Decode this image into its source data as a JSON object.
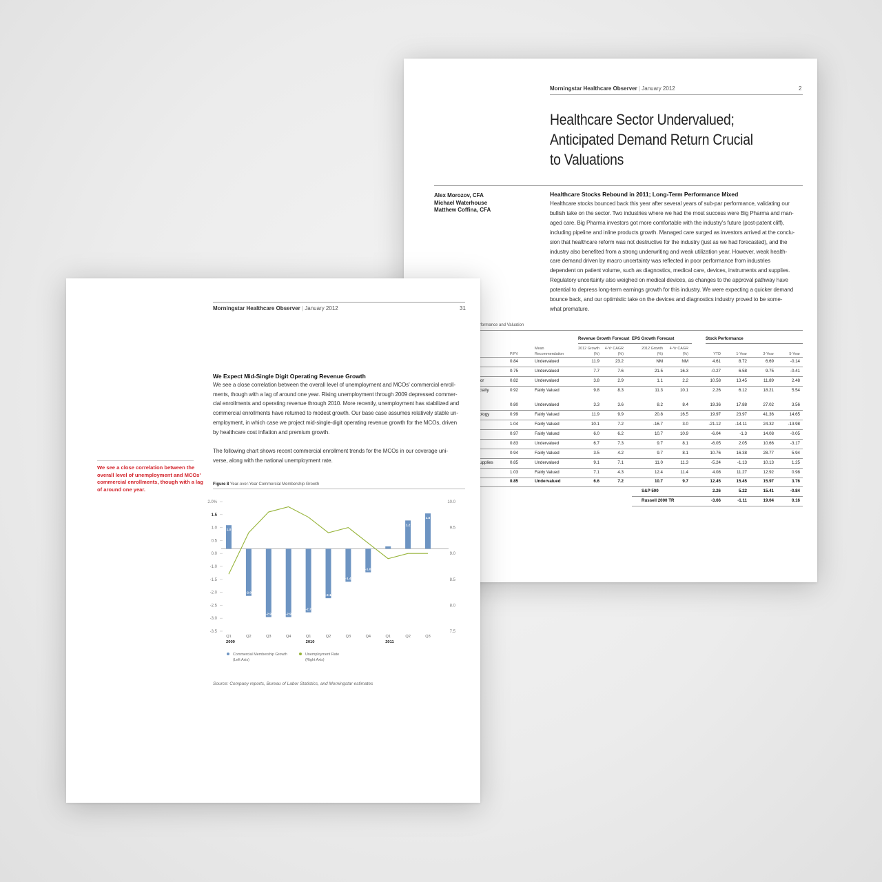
{
  "page2": {
    "header": {
      "publication": "Morningstar Healthcare Observer",
      "date": "January 2012",
      "page_number": "2"
    },
    "title_lines": [
      "Healthcare Sector Undervalued;",
      "Anticipated Demand Return Crucial",
      "to Valuations"
    ],
    "authors": [
      "Alex Morozov, CFA",
      "Michael Waterhouse",
      "Matthew Coffina, CFA"
    ],
    "section_heading": "Healthcare Stocks Rebound in 2011; Long-Term Performance Mixed",
    "body_lines": [
      "Healthcare stocks bounced back this year after several years of sub-par performance, validating our",
      "bullish take on the sector. Two industries where we had the most success were Big Pharma and man-",
      "aged care. Big Pharma investors got more comfortable with the industry's future (post-patent cliff),",
      "including pipeline and inline products growth. Managed care surged as investors arrived at the conclu-",
      "sion that healthcare reform was not destructive for the industry (just as we had forecasted), and the",
      "industry also benefited from a strong underwriting and weak utilization year. However, weak health-",
      "care demand driven by macro uncertainty was reflected in poor performance from industries",
      "dependent on patient volume, such as diagnostics, medical care, devices, instruments and supplies.",
      "Regulatory uncertainty also weighed on medical devices, as changes to the approval pathway have",
      "potential to depress long-term earnings growth for this industry. We were expecting a quicker demand",
      "bounce back, and our optimistic take on the devices and diagnostics industry proved to be some-",
      "what premature."
    ],
    "table": {
      "caption": "erformance and Valuation",
      "group_headers": [
        "Revenue Growth Forecast",
        "EPS Growth Forecast",
        "Stock Performance"
      ],
      "column_headers": {
        "pfv": "P/FV",
        "mean_rec": [
          "Mean",
          "Recommendation"
        ],
        "rev2012": [
          "2012 Growth",
          "(%)"
        ],
        "rev4yr": [
          "4-Yr CAGR",
          "(%)"
        ],
        "eps2012": [
          "2012 Growth",
          "(%)"
        ],
        "eps4yr": [
          "4-Yr CAGR",
          "(%)"
        ],
        "ytd": "YTD",
        "y1": "1-Year",
        "y3": "3-Year",
        "y5": "5-Year"
      },
      "rows": [
        {
          "label": "",
          "pfv": "0.84",
          "rec": "Undervalued",
          "r12": "11.9",
          "r4": "23.2",
          "e12": "NM",
          "e4": "NM",
          "ytd": "4.61",
          "y1": "8.72",
          "y3": "6.69",
          "y5": "-0.14"
        },
        {
          "label": "",
          "pfv": "0.75",
          "rec": "Undervalued",
          "r12": "7.7",
          "r4": "7.6",
          "e12": "21.5",
          "e4": "16.3",
          "ytd": "-0.27",
          "y1": "6.58",
          "y3": "9.75",
          "y5": "-0.41"
        },
        {
          "label": "ajor",
          "pfv": "0.82",
          "rec": "Undervalued",
          "r12": "3.8",
          "r4": "2.9",
          "e12": "1.1",
          "e4": "2.2",
          "ytd": "10.58",
          "y1": "13.45",
          "y3": "11.89",
          "y5": "2.48"
        },
        {
          "label": "ecialty",
          "pfv": "0.92",
          "rec": "Fairly Valued",
          "r12": "9.8",
          "r4": "8.3",
          "e12": "11.3",
          "e4": "10.1",
          "ytd": "2.26",
          "y1": "6.12",
          "y3": "18.21",
          "y5": "5.54"
        },
        {
          "label": "",
          "pfv": "0.80",
          "rec": "Undervalued",
          "r12": "3.3",
          "r4": "3.6",
          "e12": "8.2",
          "e4": "8.4",
          "ytd": "19.36",
          "y1": "17.88",
          "y3": "27.02",
          "y5": "3.56"
        },
        {
          "label": "nology",
          "pfv": "0.99",
          "rec": "Fairly Valued",
          "r12": "11.9",
          "r4": "9.9",
          "e12": "20.8",
          "e4": "16.5",
          "ytd": "19.97",
          "y1": "23.97",
          "y3": "41.36",
          "y5": "14.65"
        },
        {
          "label": "s",
          "pfv": "1.04",
          "rec": "Fairly Valued",
          "r12": "10.1",
          "r4": "7.2",
          "e12": "-16.7",
          "e4": "3.0",
          "ytd": "-21.12",
          "y1": "-14.11",
          "y3": "24.32",
          "y5": "-13.98"
        },
        {
          "label": "",
          "pfv": "0.97",
          "rec": "Fairly Valued",
          "r12": "6.0",
          "r4": "6.2",
          "e12": "10.7",
          "e4": "10.9",
          "ytd": "-6.04",
          "y1": "-1.3",
          "y3": "14.08",
          "y5": "-0.05"
        },
        {
          "label": "",
          "pfv": "0.83",
          "rec": "Undervalued",
          "r12": "6.7",
          "r4": "7.3",
          "e12": "9.7",
          "e4": "8.1",
          "ytd": "-6.05",
          "y1": "2.05",
          "y3": "10.66",
          "y5": "-3.17"
        },
        {
          "label": "",
          "pfv": "0.94",
          "rec": "Fairly Valued",
          "r12": "3.5",
          "r4": "4.2",
          "e12": "9.7",
          "e4": "8.1",
          "ytd": "10.76",
          "y1": "16.38",
          "y3": "28.77",
          "y5": "5.94"
        },
        {
          "label": "Supplies",
          "pfv": "0.85",
          "rec": "Undervalued",
          "r12": "9.1",
          "r4": "7.1",
          "e12": "11.0",
          "e4": "11.3",
          "ytd": "-5.24",
          "y1": "-1.13",
          "y3": "10.13",
          "y5": "1.25"
        },
        {
          "label": "s",
          "pfv": "1.03",
          "rec": "Fairly Valued",
          "r12": "7.1",
          "r4": "4.3",
          "e12": "12.4",
          "e4": "11.4",
          "ytd": "4.08",
          "y1": "11.27",
          "y3": "12.92",
          "y5": "0.98"
        }
      ],
      "total": {
        "pfv": "0.85",
        "rec": "Undervalued",
        "r12": "6.6",
        "r4": "7.2",
        "e12": "10.7",
        "e4": "9.7",
        "ytd": "12.45",
        "y1": "15.45",
        "y3": "15.97",
        "y5": "3.76"
      },
      "benchmarks": [
        {
          "name": "S&P 500",
          "ytd": "2.26",
          "y1": "5.22",
          "y3": "15.41",
          "y5": "-0.84"
        },
        {
          "name": "Russell 2000 TR",
          "ytd": "-3.66",
          "y1": "-1.11",
          "y3": "19.04",
          "y5": "0.16"
        }
      ]
    }
  },
  "page31": {
    "header": {
      "publication": "Morningstar Healthcare Observer",
      "date": "January 2012",
      "page_number": "31"
    },
    "section_heading": "We Expect Mid-Single Digit Operating Revenue Growth",
    "para1_lines": [
      "We see a close correlation between the overall level of unemployment and MCOs' commercial enroll-",
      "ments, though with a lag of around one year. Rising unemployment through 2009 depressed commer-",
      "cial enrollments and operating revenue through 2010. More recently, unemployment has stabilized and",
      "commercial enrollments have returned to modest growth. Our base case assumes relatively stable un-",
      "employment, in which case we project mid-single-digit operating revenue growth for the MCOs, driven",
      "by healthcare cost inflation and premium growth."
    ],
    "para2_lines": [
      "The following chart shows recent commercial enrollment trends for the MCOs in our coverage uni-",
      "verse, along with the national unemployment rate."
    ],
    "pullquote_lines": [
      "We see a close correlation between the",
      "overall level of unemployment and MCOs'",
      "commercial enrollments, though with a lag",
      "of around one year."
    ],
    "figure_label": "Figure 8",
    "figure_title": "Year-over-Year Commercial Membership Growth",
    "source": "Source: Company reports, Bureau of Labor Statistics, and Morningstar estimates"
  },
  "chart_data": {
    "type": "bar",
    "title": "Year-over-Year Commercial Membership Growth",
    "categories": [
      "Q1",
      "Q2",
      "Q3",
      "Q4",
      "Q1",
      "Q2",
      "Q3",
      "Q4",
      "Q1",
      "Q2",
      "Q3"
    ],
    "year_labels": [
      "2009",
      "2010",
      "2011"
    ],
    "series": [
      {
        "name": "Commercial Membership Growth",
        "axis": "left",
        "type": "bar",
        "values": [
          1.0,
          -2.0,
          -2.9,
          -2.9,
          -2.7,
          -2.1,
          -1.4,
          -1.0,
          0.1,
          1.2,
          1.5
        ],
        "labels": [
          "1.0",
          "-2.0",
          "-2.9",
          "-2.9",
          "-2.7",
          "-2.1",
          "-1.4",
          "-1.0",
          "0.1",
          "1.2",
          "1.5"
        ],
        "color": "#6d94c2"
      },
      {
        "name": "Unemployment Rate",
        "axis": "right",
        "type": "line",
        "values": [
          8.6,
          9.4,
          9.8,
          9.9,
          9.7,
          9.4,
          9.5,
          9.2,
          8.9,
          9.0,
          9.0
        ],
        "color": "#97b43a"
      }
    ],
    "legend": [
      {
        "lines": [
          "Commercial Membership Growth",
          "(Left Axis)"
        ],
        "color": "#6d94c2"
      },
      {
        "lines": [
          "Unemployment Rate",
          "(Right Axis)"
        ],
        "color": "#97b43a"
      }
    ],
    "left_axis": {
      "ticks": [
        "2.0%",
        "1.5",
        "1.0",
        "0.5",
        "0.0",
        "-1.0",
        "-1.5",
        "-2.0",
        "-2.5",
        "-3.0",
        "-3.5"
      ],
      "ylim": [
        -3.5,
        2.0
      ]
    },
    "right_axis": {
      "ticks": [
        "10.0",
        "9.5",
        "9.0",
        "8.5",
        "8.0",
        "7.5"
      ],
      "ylim": [
        7.5,
        10.0
      ]
    },
    "legend_position": "bottom-left",
    "grid": false
  }
}
